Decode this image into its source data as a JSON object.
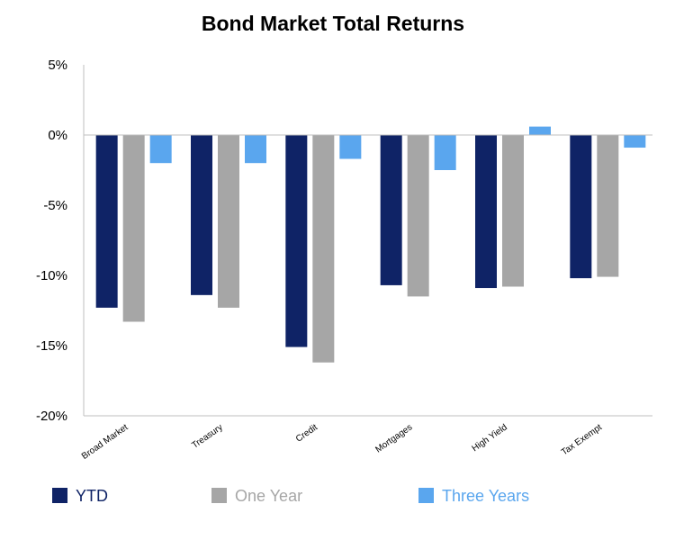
{
  "chart_data": {
    "type": "bar",
    "title": "Bond Market Total Returns",
    "xlabel": "",
    "ylabel": "",
    "categories": [
      "Broad Market",
      "Treasury",
      "Credit",
      "Mortgages",
      "High Yield",
      "Tax Exempt"
    ],
    "series": [
      {
        "name": "YTD",
        "color": "#0f2366",
        "values": [
          -12.3,
          -11.4,
          -15.1,
          -10.7,
          -10.9,
          -10.2
        ]
      },
      {
        "name": "One Year",
        "color": "#a6a6a6",
        "values": [
          -13.3,
          -12.3,
          -16.2,
          -11.5,
          -10.8,
          -10.1
        ]
      },
      {
        "name": "Three Years",
        "color": "#5aa6ee",
        "values": [
          -2.0,
          -2.0,
          -1.7,
          -2.5,
          0.6,
          -0.9
        ]
      }
    ],
    "ylim": [
      -20,
      5
    ],
    "yticks": [
      5,
      0,
      -5,
      -10,
      -15,
      -20
    ],
    "ytick_labels": [
      "5%",
      "0%",
      "-5%",
      "-10%",
      "-15%",
      "-20%"
    ],
    "grid": false,
    "legend_position": "bottom"
  }
}
